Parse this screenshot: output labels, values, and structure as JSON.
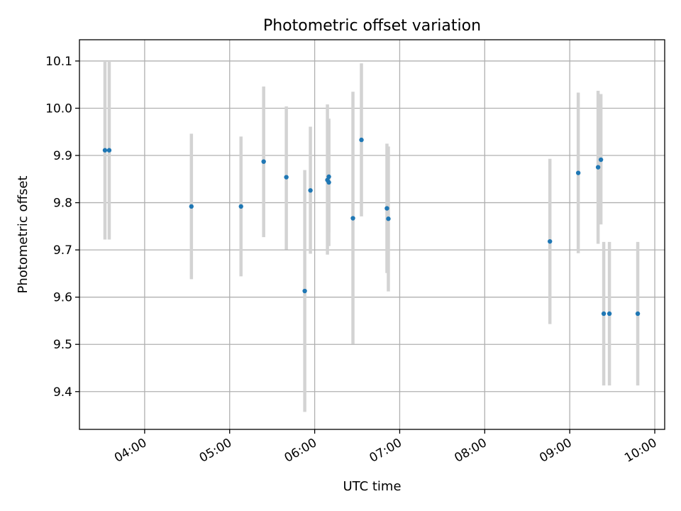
{
  "chart_data": {
    "type": "scatter",
    "title": "Photometric offset variation",
    "xlabel": "UTC time",
    "ylabel": "Photometric offset",
    "xlim": [
      "03:14",
      "10:07"
    ],
    "ylim": [
      9.32,
      10.145
    ],
    "x_ticks": [
      "04:00",
      "05:00",
      "06:00",
      "07:00",
      "08:00",
      "09:00",
      "10:00"
    ],
    "y_ticks": [
      9.4,
      9.5,
      9.6,
      9.7,
      9.8,
      9.9,
      10.0,
      10.1
    ],
    "y_tick_labels": [
      "9.4",
      "9.5",
      "9.6",
      "9.7",
      "9.8",
      "9.9",
      "10.0",
      "10.1"
    ],
    "grid": true,
    "marker_color": "#1f77b4",
    "errorbar_color": "#d3d3d3",
    "points": [
      {
        "x": "03:32",
        "y": 9.911,
        "err_low": 9.722,
        "err_high": 10.1
      },
      {
        "x": "03:35",
        "y": 9.911,
        "err_low": 9.722,
        "err_high": 10.1
      },
      {
        "x": "04:33",
        "y": 9.792,
        "err_low": 9.638,
        "err_high": 9.946
      },
      {
        "x": "05:08",
        "y": 9.792,
        "err_low": 9.644,
        "err_high": 9.94
      },
      {
        "x": "05:24",
        "y": 9.887,
        "err_low": 9.727,
        "err_high": 10.046
      },
      {
        "x": "05:40",
        "y": 9.854,
        "err_low": 9.701,
        "err_high": 10.004
      },
      {
        "x": "05:53",
        "y": 9.613,
        "err_low": 9.357,
        "err_high": 9.869
      },
      {
        "x": "05:57",
        "y": 9.826,
        "err_low": 9.692,
        "err_high": 9.961
      },
      {
        "x": "06:09",
        "y": 9.848,
        "err_low": 9.69,
        "err_high": 10.008
      },
      {
        "x": "06:10",
        "y": 9.843,
        "err_low": 9.708,
        "err_high": 9.978
      },
      {
        "x": "06:10",
        "y": 9.855,
        "err_low": 9.737,
        "err_high": 9.974
      },
      {
        "x": "06:27",
        "y": 9.767,
        "err_low": 9.501,
        "err_high": 10.035
      },
      {
        "x": "06:33",
        "y": 9.933,
        "err_low": 9.771,
        "err_high": 10.095
      },
      {
        "x": "06:51",
        "y": 9.788,
        "err_low": 9.651,
        "err_high": 9.925
      },
      {
        "x": "06:52",
        "y": 9.766,
        "err_low": 9.612,
        "err_high": 9.919
      },
      {
        "x": "08:46",
        "y": 9.718,
        "err_low": 9.543,
        "err_high": 9.893
      },
      {
        "x": "09:06",
        "y": 9.863,
        "err_low": 9.693,
        "err_high": 10.033
      },
      {
        "x": "09:20",
        "y": 9.875,
        "err_low": 9.713,
        "err_high": 10.037
      },
      {
        "x": "09:22",
        "y": 9.891,
        "err_low": 9.754,
        "err_high": 10.03
      },
      {
        "x": "09:24",
        "y": 9.565,
        "err_low": 9.413,
        "err_high": 9.717
      },
      {
        "x": "09:28",
        "y": 9.565,
        "err_low": 9.413,
        "err_high": 9.717
      },
      {
        "x": "09:48",
        "y": 9.565,
        "err_low": 9.413,
        "err_high": 9.717
      }
    ]
  }
}
